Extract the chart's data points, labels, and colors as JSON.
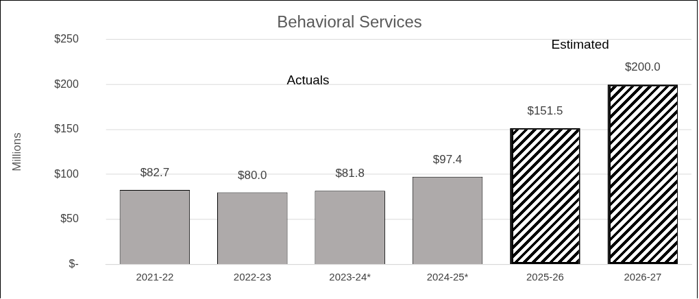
{
  "chart_data": {
    "type": "bar",
    "title": "Behavioral Services",
    "ylabel": "Millions",
    "categories": [
      "2021-22",
      "2022-23",
      "2023-24*",
      "2024-25*",
      "2025-26",
      "2026-27"
    ],
    "values": [
      82.7,
      80.0,
      81.8,
      97.4,
      151.5,
      200.0
    ],
    "colors": [
      "#aeaaaa",
      "#aeaaaa",
      "#aeaaaa",
      "#aeaaaa",
      "#000000",
      "#000000"
    ],
    "value_labels": [
      "$82.7",
      "$80.0",
      "$81.8",
      "$97.4",
      "$151.5",
      "$200.0"
    ],
    "ylim": [
      0,
      250
    ],
    "yticks": [
      {
        "value": 0,
        "label": "$-"
      },
      {
        "value": 50,
        "label": "$50"
      },
      {
        "value": 100,
        "label": "$100"
      },
      {
        "value": 150,
        "label": "$150"
      },
      {
        "value": 200,
        "label": "$200"
      },
      {
        "value": 250,
        "label": "$250"
      }
    ],
    "annotations": [
      "Actuals",
      "Estimated"
    ],
    "grid": "y",
    "legend": false
  }
}
